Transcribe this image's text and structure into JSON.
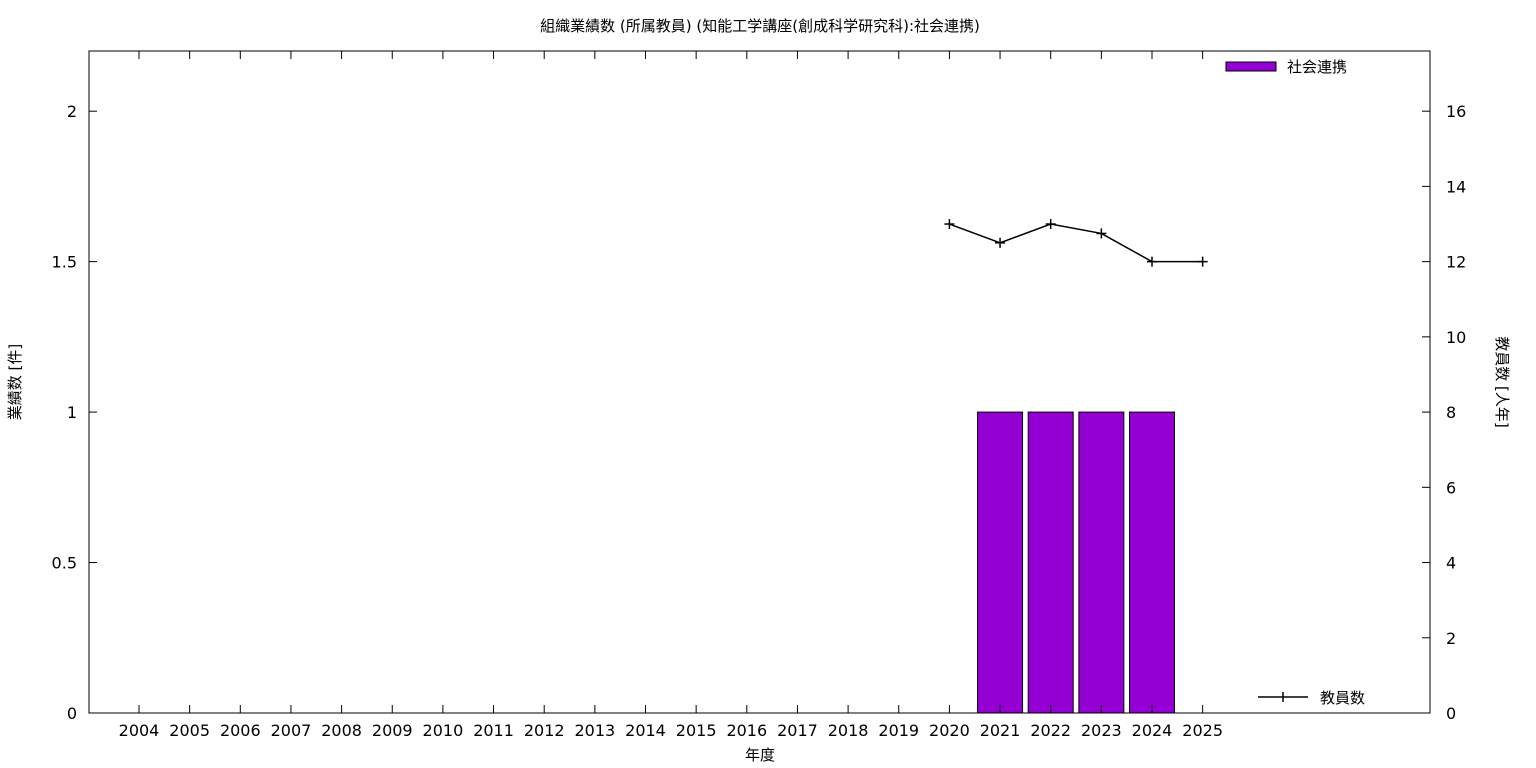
{
  "chart_data": {
    "type": "bar",
    "title": "組織業績数 (所属教員) (知能工学講座(創成科学研究科):社会連携)",
    "xlabel": "年度",
    "ylabel": "業績数 [件]",
    "y2label": "教員数 [人年]",
    "categories": [
      "2004",
      "2005",
      "2006",
      "2007",
      "2008",
      "2009",
      "2010",
      "2011",
      "2012",
      "2013",
      "2014",
      "2015",
      "2016",
      "2017",
      "2018",
      "2019",
      "2020",
      "2021",
      "2022",
      "2023",
      "2024",
      "2025"
    ],
    "series": [
      {
        "name": "社会連携",
        "type": "bar",
        "axis": "left",
        "color": "#9400d3",
        "values": [
          0,
          0,
          0,
          0,
          0,
          0,
          0,
          0,
          0,
          0,
          0,
          0,
          0,
          0,
          0,
          0,
          0,
          1,
          1,
          1,
          1,
          0
        ]
      },
      {
        "name": "教員数",
        "type": "line",
        "axis": "right",
        "color": "#000000",
        "values": [
          null,
          null,
          null,
          null,
          null,
          null,
          null,
          null,
          null,
          null,
          null,
          null,
          null,
          null,
          null,
          null,
          13,
          12.5,
          13,
          12.75,
          12,
          12
        ]
      }
    ],
    "ylim": [
      0,
      2.2
    ],
    "yticks": [
      "0",
      "0.5",
      "1",
      "1.5",
      "2"
    ],
    "y2lim": [
      0,
      17.6
    ],
    "y2ticks": [
      "0",
      "2",
      "4",
      "6",
      "8",
      "10",
      "12",
      "14",
      "16"
    ],
    "grid": false,
    "legend_bar_position": "top-right",
    "legend_line_position": "bottom-right"
  }
}
